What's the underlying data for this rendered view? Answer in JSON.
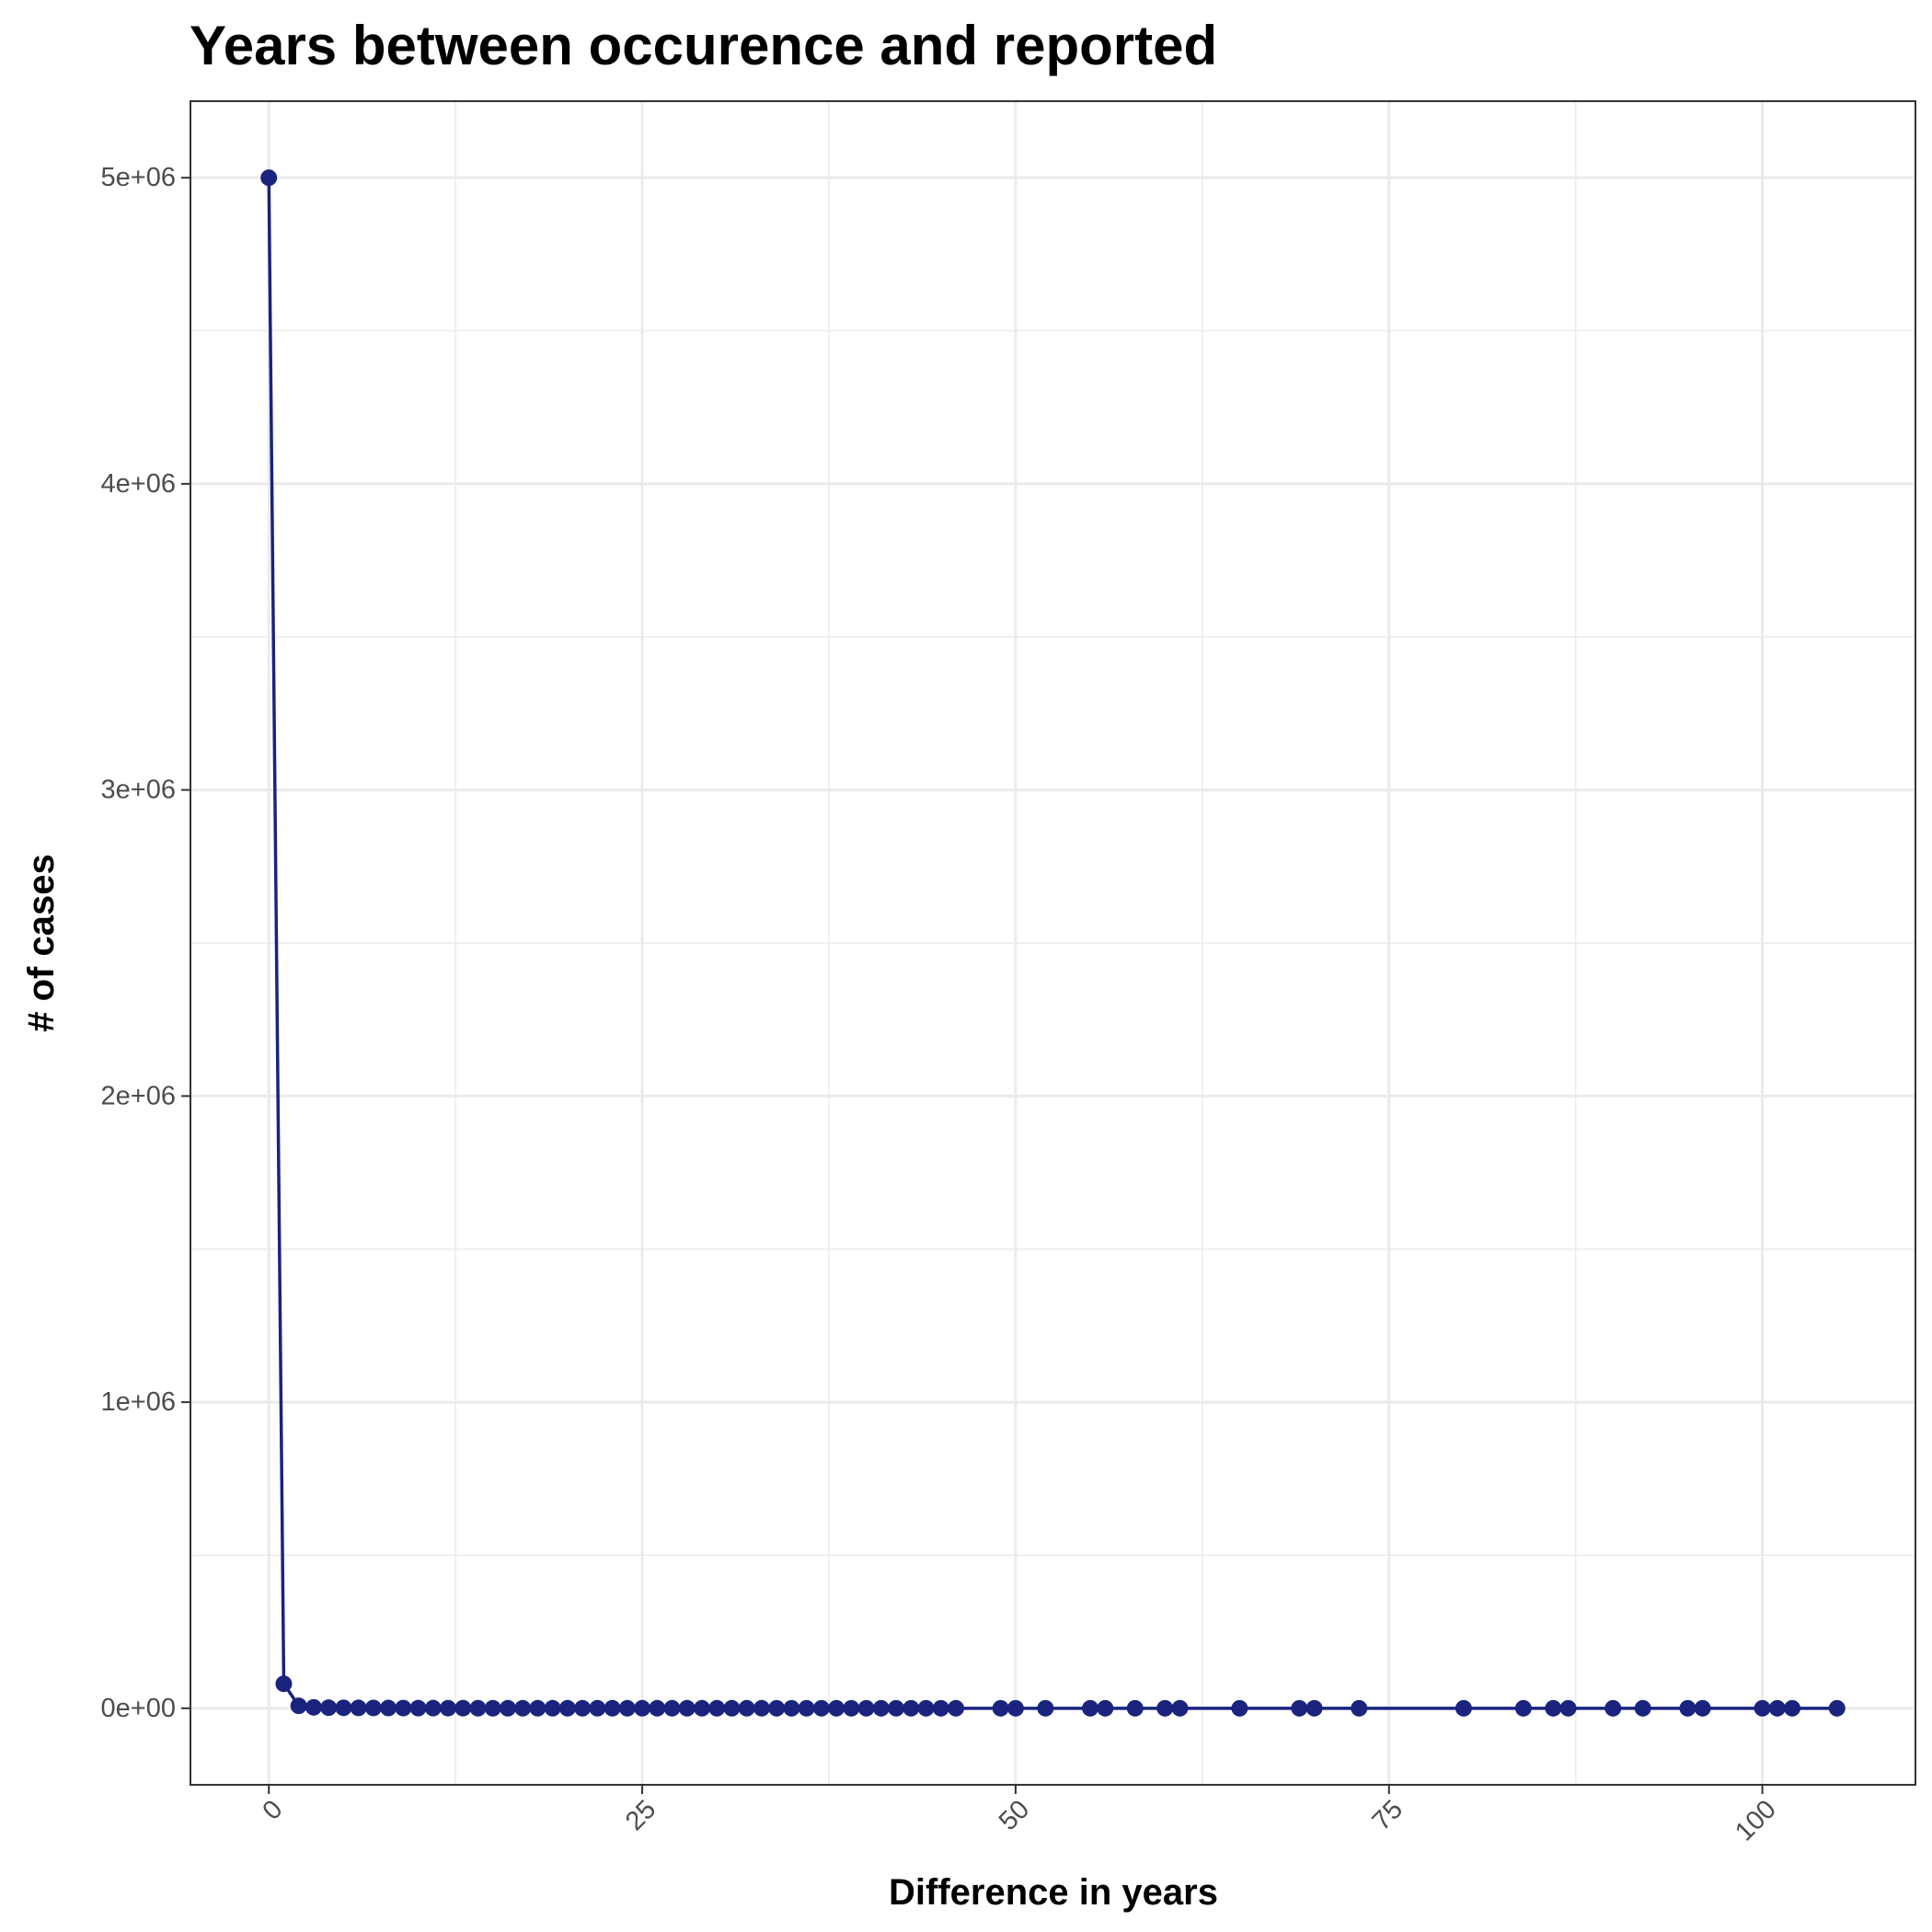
{
  "chart_data": {
    "type": "line",
    "title": "Years between occurence and reported",
    "xlabel": "Difference in years",
    "ylabel": "# of cases",
    "x_ticks": [
      {
        "value": 0,
        "label": "0"
      },
      {
        "value": 25,
        "label": "25"
      },
      {
        "value": 50,
        "label": "50"
      },
      {
        "value": 75,
        "label": "75"
      },
      {
        "value": 100,
        "label": "100"
      }
    ],
    "y_ticks": [
      {
        "value": 0,
        "label": "0e+00"
      },
      {
        "value": 1000000,
        "label": "1e+06"
      },
      {
        "value": 2000000,
        "label": "2e+06"
      },
      {
        "value": 3000000,
        "label": "3e+06"
      },
      {
        "value": 4000000,
        "label": "4e+06"
      },
      {
        "value": 5000000,
        "label": "5e+06"
      }
    ],
    "x_minor_ticks": [
      12.5,
      37.5,
      62.5,
      87.5
    ],
    "y_minor_ticks": [
      500000,
      1500000,
      2500000,
      3500000,
      4500000
    ],
    "xlim": [
      -5.25,
      110.25
    ],
    "ylim": [
      -250000,
      5250000
    ],
    "grid": true,
    "legend": "none",
    "colors": {
      "series": "#1a237e",
      "grid": "#ebebeb",
      "panel_border": "#333333"
    },
    "series": [
      {
        "x": [
          0,
          1,
          2,
          3,
          4,
          5,
          6,
          7,
          8,
          9,
          10,
          11,
          12,
          13,
          14,
          15,
          16,
          17,
          18,
          19,
          20,
          21,
          22,
          23,
          24,
          25,
          26,
          27,
          28,
          29,
          30,
          31,
          32,
          33,
          34,
          35,
          36,
          37,
          38,
          39,
          40,
          41,
          42,
          43,
          44,
          45,
          46,
          49,
          50,
          52,
          55,
          56,
          58,
          60,
          61,
          65,
          69,
          70,
          73,
          80,
          84,
          86,
          87,
          90,
          92,
          95,
          96,
          100,
          101,
          102,
          105
        ],
        "y": [
          5000000,
          80000,
          8000,
          3000,
          2000,
          1500,
          1200,
          1000,
          800,
          600,
          500,
          400,
          300,
          250,
          200,
          180,
          160,
          140,
          120,
          100,
          90,
          80,
          70,
          60,
          50,
          45,
          40,
          35,
          30,
          28,
          25,
          22,
          20,
          18,
          16,
          14,
          12,
          10,
          9,
          8,
          7,
          6,
          5,
          5,
          4,
          4,
          3,
          3,
          3,
          2,
          2,
          2,
          2,
          2,
          2,
          1,
          1,
          1,
          1,
          1,
          1,
          1,
          1,
          1,
          1,
          1,
          1,
          1,
          1,
          1,
          1
        ]
      }
    ]
  }
}
